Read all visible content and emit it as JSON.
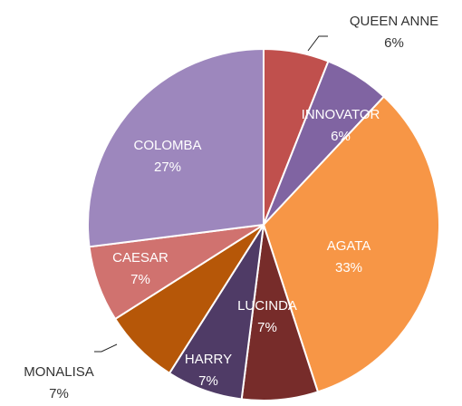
{
  "chart_data": {
    "type": "pie",
    "categories": [
      "QUEEN ANNE",
      "INNOVATOR",
      "AGATA",
      "LUCINDA",
      "HARRY",
      "MONALISA",
      "CAESAR",
      "COLOMBA"
    ],
    "values": [
      6,
      6,
      33,
      7,
      7,
      7,
      7,
      27
    ],
    "value_labels": [
      "6%",
      "6%",
      "33%",
      "7%",
      "7%",
      "7%",
      "7%",
      "27%"
    ],
    "colors": [
      "#c0504d",
      "#8064a2",
      "#f79646",
      "#772c2a",
      "#4f3b66",
      "#b65708",
      "#d0726f",
      "#9d87bd"
    ]
  }
}
